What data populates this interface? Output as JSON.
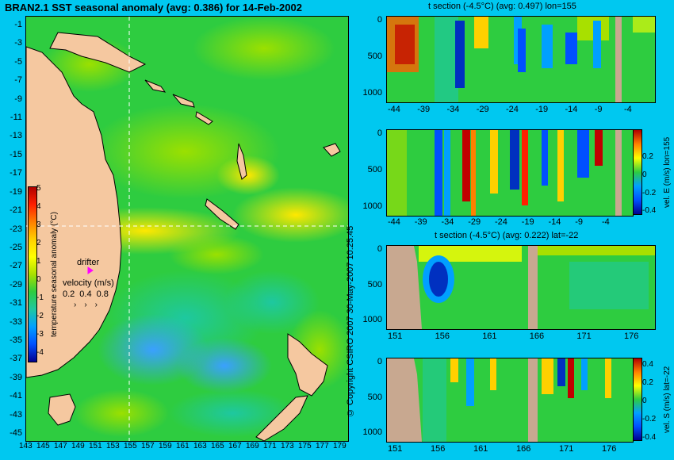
{
  "main_map": {
    "title": "BRAN2.1 SST seasonal anomaly (avg: 0.386) for 14-Feb-2002",
    "lat_ticks": [
      "-1",
      "-3",
      "-5",
      "-7",
      "-9",
      "-11",
      "-13",
      "-15",
      "-17",
      "-19",
      "-21",
      "-23",
      "-25",
      "-27",
      "-29",
      "-31",
      "-33",
      "-35",
      "-37",
      "-39",
      "-41",
      "-43",
      "-45"
    ],
    "lon_ticks": [
      "143",
      "145",
      "147",
      "149",
      "151",
      "153",
      "155",
      "157",
      "159",
      "161",
      "163",
      "165",
      "167",
      "169",
      "171",
      "173",
      "175",
      "177",
      "179"
    ],
    "colorbar": {
      "label": "temperature seasonal anomaly (°C)",
      "ticks": [
        "5",
        "4",
        "3",
        "2",
        "1",
        "0",
        "-1",
        "-2",
        "-3",
        "-4"
      ]
    },
    "drifter_label": "drifter",
    "velocity": {
      "label": "velocity (m/s)",
      "values": [
        "0.2",
        "0.4",
        "0.8"
      ]
    },
    "credits": "© Copyright CSIRO 2007   30-May-2007 10:25:45"
  },
  "panels": [
    {
      "title": "t section (-4.5°C) (avg: 0.497) lon=155",
      "y_ticks": [
        "0",
        "500",
        "1000"
      ],
      "x_ticks": [
        "-44",
        "-39",
        "-34",
        "-29",
        "-24",
        "-19",
        "-14",
        "-9",
        "-4"
      ]
    },
    {
      "title": "",
      "y_ticks": [
        "0",
        "500",
        "1000"
      ],
      "x_ticks": [
        "-44",
        "-39",
        "-34",
        "-29",
        "-24",
        "-19",
        "-14",
        "-9",
        "-4"
      ],
      "colorbar": {
        "label": "vel. E (m/s) lon=155",
        "ticks": [
          "0.2",
          "0",
          "-0.2",
          "-0.4"
        ]
      }
    },
    {
      "title": "t section (-4.5°C) (avg: 0.222) lat=-22",
      "y_ticks": [
        "0",
        "500",
        "1000"
      ],
      "x_ticks": [
        "151",
        "156",
        "161",
        "166",
        "171",
        "176"
      ]
    },
    {
      "title": "",
      "y_ticks": [
        "0",
        "500",
        "1000"
      ],
      "x_ticks": [
        "151",
        "156",
        "161",
        "166",
        "171",
        "176"
      ],
      "colorbar": {
        "label": "vel. S (m/s) lat=-22",
        "ticks": [
          "0.4",
          "0.2",
          "0",
          "-0.2",
          "-0.4"
        ]
      }
    }
  ],
  "colors": {
    "background": "#00c8f0",
    "land": "#f5c8a0",
    "section_land": "#c8a890",
    "neutral_field": "#2ecc40"
  }
}
